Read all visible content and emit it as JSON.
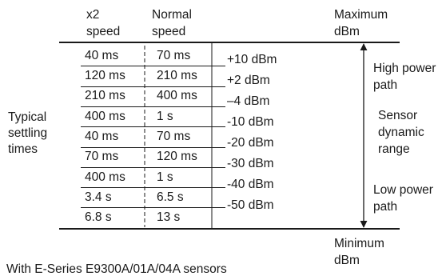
{
  "headers": {
    "x2": [
      "x2",
      "speed"
    ],
    "normal": [
      "Normal",
      "speed"
    ],
    "max": [
      "Maximum",
      "dBm"
    ]
  },
  "rows": [
    {
      "x2": "40 ms",
      "normal": "70 ms"
    },
    {
      "x2": "120 ms",
      "normal": "210 ms"
    },
    {
      "x2": "210 ms",
      "normal": "400 ms"
    },
    {
      "x2": "400 ms",
      "normal": "1 s"
    },
    {
      "x2": "40 ms",
      "normal": "70 ms"
    },
    {
      "x2": "70 ms",
      "normal": "120 ms"
    },
    {
      "x2": "400 ms",
      "normal": "1 s"
    },
    {
      "x2": "3.4 s",
      "normal": "6.5 s"
    },
    {
      "x2": "6.8 s",
      "normal": "13 s"
    }
  ],
  "dbm_levels": [
    "+10 dBm",
    "+2 dBm",
    "–4 dBm",
    "-10 dBm",
    "-20 dBm",
    "-30 dBm",
    "-40 dBm",
    "-50 dBm"
  ],
  "left_label": [
    "Typical",
    "settling",
    "times"
  ],
  "right_labels": {
    "high": [
      "High power",
      "path"
    ],
    "range": [
      "Sensor",
      "dynamic",
      "range"
    ],
    "low": [
      "Low power",
      "path"
    ]
  },
  "min_label": [
    "Minimum",
    "dBm"
  ],
  "footer": "With E-Series E9300A/01A/04A sensors"
}
